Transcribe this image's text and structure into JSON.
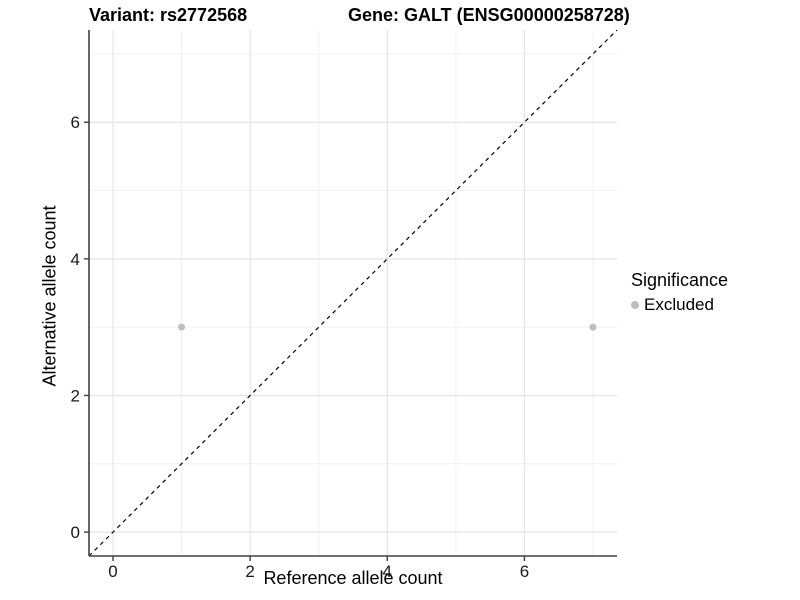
{
  "chart_data": {
    "type": "scatter",
    "title_left": "Variant: rs2772568",
    "title_right": "Gene: GALT (ENSG00000258728)",
    "xlabel": "Reference allele count",
    "ylabel": "Alternative allele count",
    "xlim": [
      -0.35,
      7.35
    ],
    "ylim": [
      -0.35,
      7.35
    ],
    "x_ticks": [
      0,
      2,
      4,
      6
    ],
    "y_ticks": [
      0,
      2,
      4,
      6
    ],
    "x_minor_ticks": [
      1,
      3,
      5,
      7
    ],
    "y_minor_ticks": [
      1,
      3,
      5,
      7
    ],
    "grid": true,
    "identity_line": {
      "slope": 1,
      "intercept": 0,
      "style": "dashed",
      "color": "#000000"
    },
    "series": [
      {
        "name": "Excluded",
        "color": "#bebebe",
        "points": [
          {
            "x": 1,
            "y": 3
          },
          {
            "x": 7,
            "y": 3
          }
        ]
      }
    ],
    "legend": {
      "title": "Significance",
      "position": "right",
      "items": [
        {
          "label": "Excluded",
          "color": "#bebebe"
        }
      ]
    },
    "colors": {
      "axis_line": "#404040",
      "major_grid": "#e5e5e5",
      "minor_grid": "#f0f0f0",
      "tick_label": "#1a1a1a",
      "point": "#bebebe"
    }
  }
}
